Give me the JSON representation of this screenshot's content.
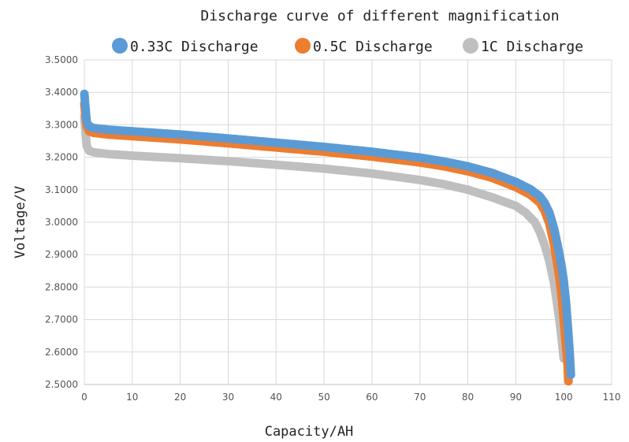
{
  "chart_data": {
    "type": "scatter",
    "title": "Discharge curve of different magnification",
    "xlabel": "Capacity/AH",
    "ylabel": "Voltage/V",
    "xlim": [
      0,
      110
    ],
    "ylim": [
      2.5,
      3.5
    ],
    "x_ticks": [
      "0",
      "10",
      "20",
      "30",
      "40",
      "50",
      "60",
      "70",
      "80",
      "90",
      "100",
      "110"
    ],
    "y_ticks": [
      "2.5000",
      "2.6000",
      "2.7000",
      "2.8000",
      "2.9000",
      "3.0000",
      "3.1000",
      "3.2000",
      "3.3000",
      "3.4000",
      "3.5000"
    ],
    "grid": true,
    "legend_position": "top",
    "series": [
      {
        "name": "0.33C Discharge",
        "color": "#5b9bd5",
        "points": [
          [
            0,
            3.395
          ],
          [
            0.2,
            3.36
          ],
          [
            0.5,
            3.31
          ],
          [
            1,
            3.295
          ],
          [
            2,
            3.29
          ],
          [
            5,
            3.285
          ],
          [
            10,
            3.28
          ],
          [
            20,
            3.27
          ],
          [
            30,
            3.258
          ],
          [
            40,
            3.245
          ],
          [
            50,
            3.232
          ],
          [
            60,
            3.217
          ],
          [
            70,
            3.199
          ],
          [
            75,
            3.187
          ],
          [
            80,
            3.172
          ],
          [
            85,
            3.152
          ],
          [
            90,
            3.124
          ],
          [
            93,
            3.102
          ],
          [
            95,
            3.08
          ],
          [
            96,
            3.06
          ],
          [
            97,
            3.03
          ],
          [
            98,
            2.98
          ],
          [
            99,
            2.91
          ],
          [
            99.5,
            2.87
          ],
          [
            100,
            2.82
          ],
          [
            100.5,
            2.75
          ],
          [
            101,
            2.65
          ],
          [
            101.2,
            2.61
          ],
          [
            101.5,
            2.53
          ]
        ]
      },
      {
        "name": "0.5C Discharge",
        "color": "#ed7d31",
        "points": [
          [
            0,
            3.365
          ],
          [
            0.2,
            3.33
          ],
          [
            0.5,
            3.295
          ],
          [
            1,
            3.28
          ],
          [
            2,
            3.275
          ],
          [
            5,
            3.27
          ],
          [
            10,
            3.265
          ],
          [
            20,
            3.255
          ],
          [
            30,
            3.243
          ],
          [
            40,
            3.23
          ],
          [
            50,
            3.217
          ],
          [
            60,
            3.202
          ],
          [
            70,
            3.184
          ],
          [
            75,
            3.172
          ],
          [
            80,
            3.157
          ],
          [
            85,
            3.137
          ],
          [
            90,
            3.108
          ],
          [
            93,
            3.085
          ],
          [
            95,
            3.06
          ],
          [
            96,
            3.035
          ],
          [
            97,
            2.995
          ],
          [
            98,
            2.93
          ],
          [
            99,
            2.84
          ],
          [
            99.5,
            2.78
          ],
          [
            100,
            2.7
          ],
          [
            100.5,
            2.61
          ],
          [
            100.8,
            2.56
          ],
          [
            101,
            2.51
          ]
        ]
      },
      {
        "name": "1C Discharge",
        "color": "#bfbfbf",
        "points": [
          [
            0,
            3.325
          ],
          [
            0.2,
            3.285
          ],
          [
            0.5,
            3.235
          ],
          [
            1,
            3.22
          ],
          [
            2,
            3.215
          ],
          [
            5,
            3.21
          ],
          [
            10,
            3.205
          ],
          [
            20,
            3.197
          ],
          [
            30,
            3.188
          ],
          [
            40,
            3.177
          ],
          [
            50,
            3.165
          ],
          [
            60,
            3.15
          ],
          [
            70,
            3.13
          ],
          [
            75,
            3.117
          ],
          [
            80,
            3.1
          ],
          [
            85,
            3.077
          ],
          [
            90,
            3.05
          ],
          [
            92,
            3.03
          ],
          [
            94,
            3.0
          ],
          [
            95,
            2.97
          ],
          [
            96,
            2.93
          ],
          [
            97,
            2.88
          ],
          [
            98,
            2.81
          ],
          [
            98.5,
            2.76
          ],
          [
            99,
            2.71
          ],
          [
            99.5,
            2.65
          ],
          [
            100,
            2.58
          ]
        ]
      }
    ]
  }
}
